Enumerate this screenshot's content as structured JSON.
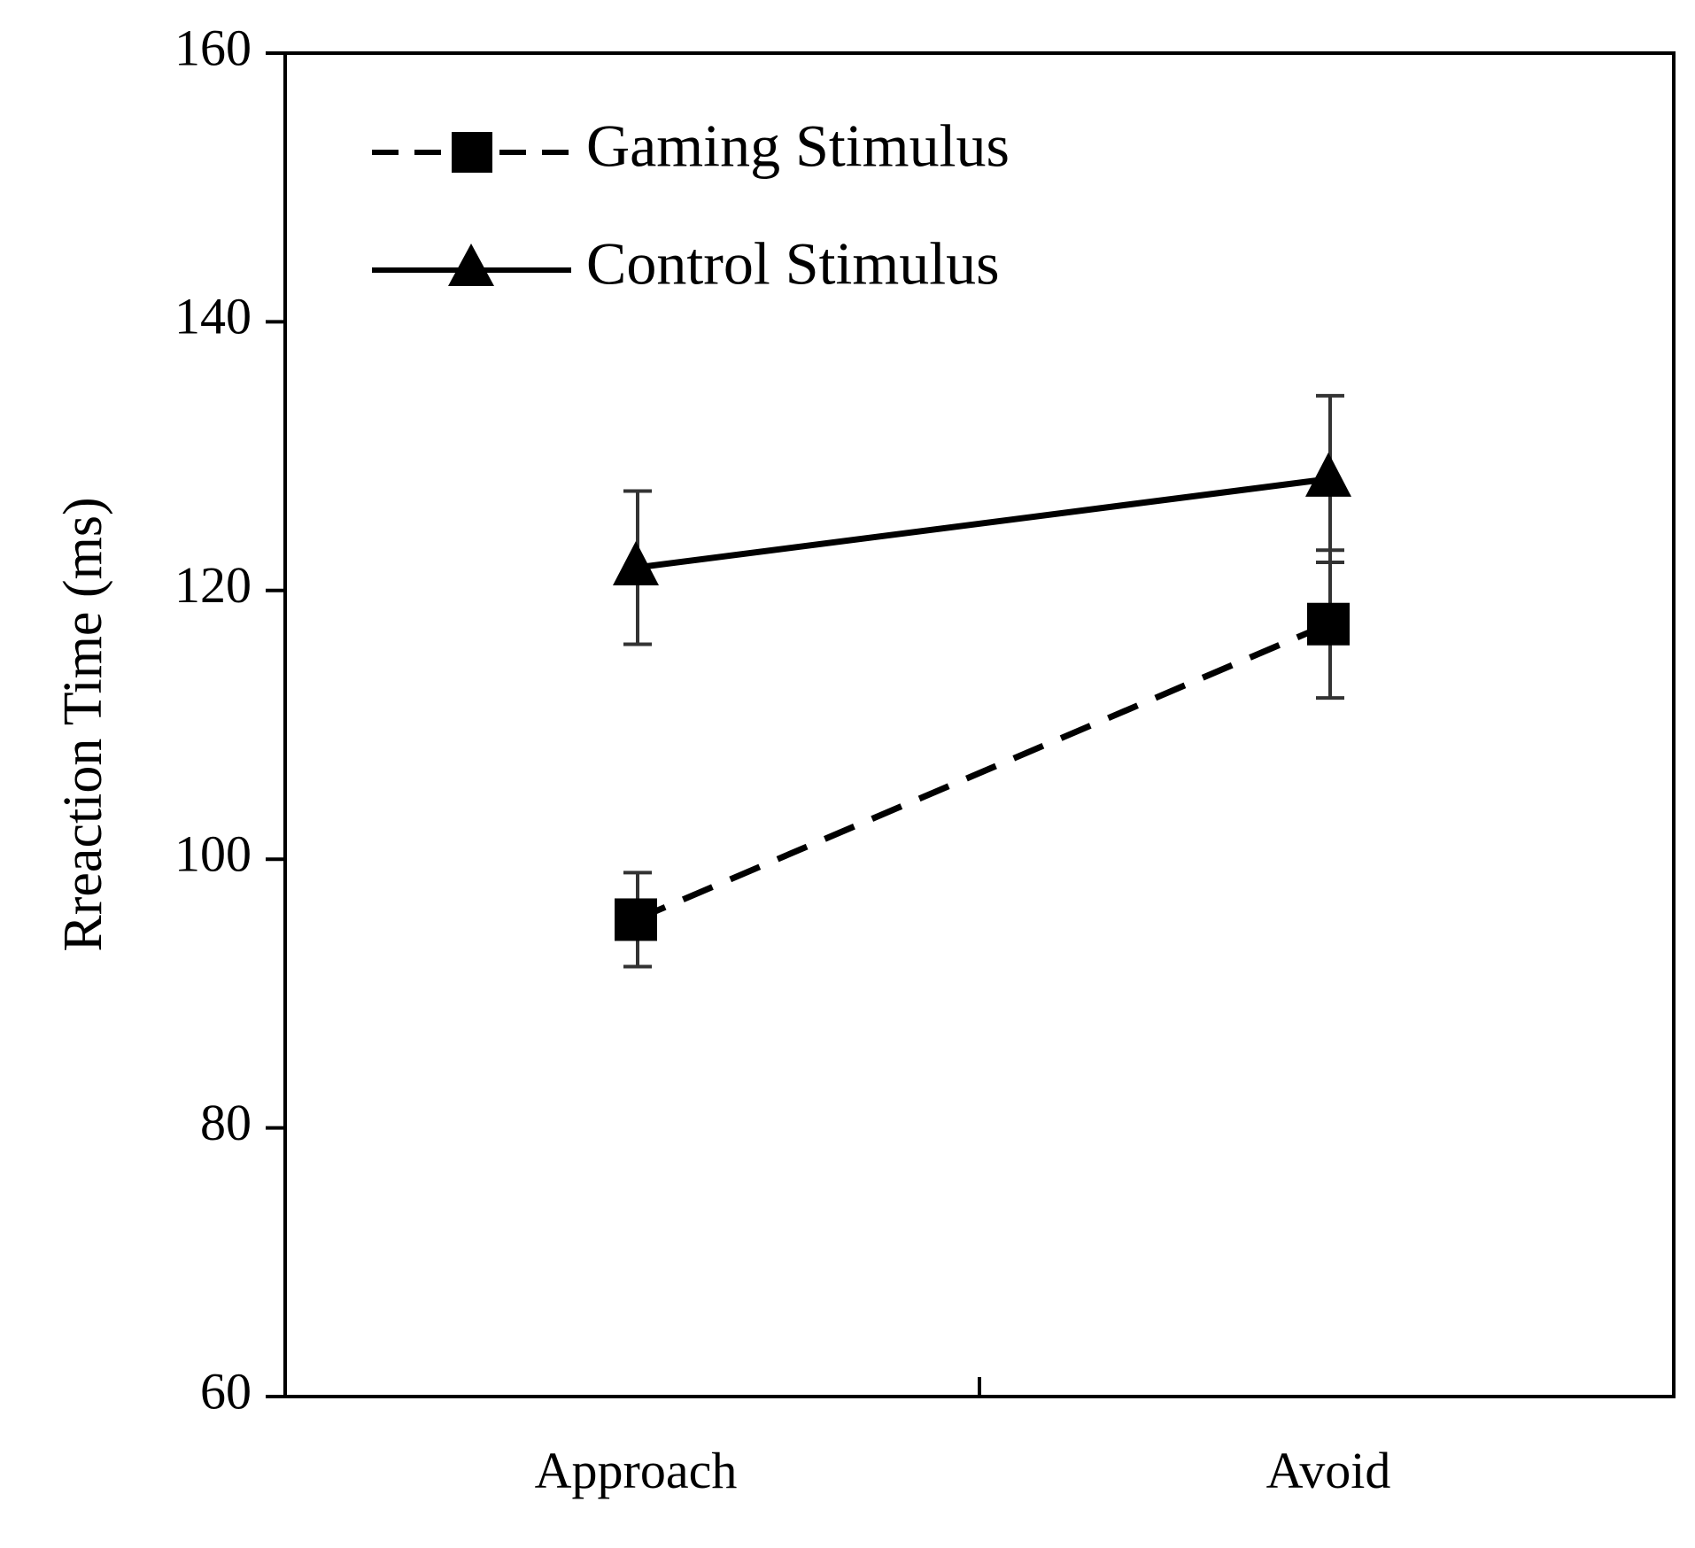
{
  "chart_data": {
    "type": "line",
    "title": "",
    "xlabel": "",
    "ylabel": "Rreaction Time (ms)",
    "categories": [
      "Approach",
      "Avoid"
    ],
    "ylim": [
      60,
      160
    ],
    "yticks": [
      60,
      80,
      100,
      120,
      140,
      160
    ],
    "grid": false,
    "legend_position": "top-left",
    "series": [
      {
        "name": "Gaming Stimulus",
        "marker": "square",
        "line_style": "dashed",
        "values": [
          95.5,
          117.5
        ],
        "error": [
          3.5,
          5.5
        ]
      },
      {
        "name": "Control Stimulus",
        "marker": "triangle",
        "line_style": "solid",
        "values": [
          121.7,
          128.3
        ],
        "error": [
          5.7,
          6.2
        ]
      }
    ]
  }
}
